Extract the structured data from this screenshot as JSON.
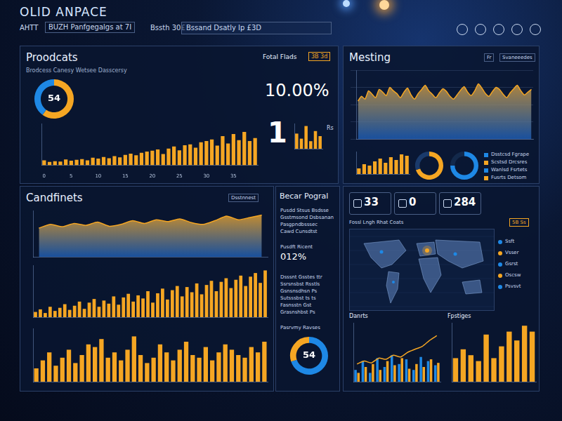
{
  "header": {
    "title": "OLID ANPACE",
    "nav": [
      "AHTT",
      "BUZH Panfgegalgs at 7I",
      "Bssth 30£"
    ],
    "search": "Bssand Dsatly Ip £3D"
  },
  "panels": [
    {
      "title": "Proodcats",
      "subtitle": "Brodcess Canesy Wetsee Dasscersy",
      "side_title": "Fotal Flads",
      "badge": "3B 3d",
      "kpi": "10.00%",
      "big": "1",
      "note": "Rs"
    },
    {
      "title": "Mesting",
      "buttons": [
        "Fr",
        "Svaneeedes"
      ],
      "legend_items": [
        "Dsstcsd Fgrape",
        "Scstsd Drcsres",
        "Wanlsd Fsrtets",
        "Fusrts Detsom"
      ]
    },
    {
      "title": "Candfinets",
      "buttons": [
        "Dsstnnest"
      ]
    },
    {
      "title": "Becar Pogral",
      "list": [
        "Pusdd Stsus Bsdsse",
        "Gsstmsond Dsbsanan",
        "Pasgpndbsssec",
        "Cawd Cunsdtst"
      ],
      "kpi_label": "Pusdft Ricent",
      "kpi": "012%",
      "list2": [
        "Dsssnt Gsstes ttr",
        "Ssrsnsbst Rsstls",
        "Gsnsnsdhsn Ps",
        "Sutsssbst ts ts",
        "Fasnsstn Gst",
        "Grasnshbst Ps"
      ],
      "caption": "Pasrvmy Ravses"
    },
    {
      "kpis": [
        "33",
        "0",
        "284"
      ],
      "map_title": "Fossl Lngh Rhat Coats",
      "badge": "5B Ss",
      "map_legend": [
        "Ssft",
        "Vsser",
        "Gsrst",
        "Oscsw",
        "Psvsvt"
      ],
      "chart_titles": [
        "Danrts",
        "Fpstiges"
      ]
    }
  ],
  "chart_data": [
    {
      "type": "doughnut",
      "values": [
        60,
        40
      ],
      "colors": [
        "#f5a623",
        "#1e88e5"
      ],
      "annotations": [
        "54"
      ]
    },
    {
      "type": "bar",
      "categories": [
        "0",
        null,
        null,
        null,
        null,
        "5",
        null,
        null,
        null,
        null,
        "10",
        null,
        null,
        null,
        null,
        "15",
        null,
        null,
        null,
        null,
        "20",
        null,
        null,
        null,
        null,
        "25",
        null,
        null,
        null,
        null,
        "30",
        null,
        null,
        null,
        null,
        "35",
        null,
        null,
        null,
        null
      ],
      "values": [
        12,
        8,
        10,
        9,
        14,
        11,
        13,
        15,
        12,
        18,
        16,
        20,
        17,
        22,
        19,
        25,
        28,
        24,
        30,
        33,
        35,
        38,
        27,
        40,
        45,
        36,
        48,
        50,
        42,
        55,
        58,
        62,
        47,
        70,
        52,
        75,
        60,
        80,
        58,
        65
      ],
      "color": "#f5a623",
      "ylim": [
        0,
        100
      ],
      "tick_labels": "x"
    },
    {
      "type": "bar",
      "values": [
        30,
        20,
        45,
        15,
        35,
        25
      ],
      "color": "#f5a623",
      "ylim": [
        0,
        50
      ],
      "tick_labels": false
    },
    {
      "type": "area",
      "values": [
        55,
        62,
        58,
        70,
        65,
        60,
        72,
        68,
        63,
        75,
        70,
        66,
        60,
        68,
        74,
        64,
        58,
        66,
        72,
        78,
        70,
        65,
        60,
        67,
        73,
        69,
        62,
        58,
        64,
        71,
        76,
        68,
        63,
        70,
        80,
        74,
        66,
        62,
        69,
        75,
        72,
        65,
        60,
        67,
        73,
        78,
        70,
        64,
        68,
        72
      ],
      "color": "#f5a623",
      "ylim": [
        0,
        100
      ],
      "yticks": [
        0,
        25,
        50,
        75,
        100
      ],
      "grid": true,
      "tick_labels": false
    },
    {
      "type": "bar",
      "values": [
        20,
        35,
        30,
        45,
        55,
        40,
        60,
        50,
        70,
        65
      ],
      "color": "#f5a623",
      "ylim": [
        0,
        80
      ],
      "tick_labels": false
    },
    {
      "type": "doughnut",
      "values": [
        70,
        30
      ],
      "colors": [
        "#f5a623",
        "#1a3a6b"
      ]
    },
    {
      "type": "doughnut",
      "values": [
        75,
        25
      ],
      "colors": [
        "#1e88e5",
        "#13294b"
      ]
    },
    {
      "type": "area",
      "values": [
        62,
        70,
        65,
        72,
        68,
        75,
        66,
        70,
        78,
        72,
        80,
        76,
        82,
        74,
        70,
        78,
        88,
        80,
        85,
        90
      ],
      "color": "#f5a623",
      "ylim": [
        0,
        100
      ],
      "tick_labels": false
    },
    {
      "type": "bar",
      "values": [
        10,
        15,
        8,
        20,
        12,
        18,
        25,
        14,
        22,
        30,
        16,
        28,
        35,
        20,
        32,
        26,
        40,
        24,
        38,
        45,
        30,
        42,
        36,
        50,
        28,
        46,
        55,
        34,
        52,
        60,
        40,
        58,
        48,
        65,
        44,
        62,
        70,
        50,
        68,
        75,
        56,
        72,
        80,
        60,
        78,
        85,
        66,
        90
      ],
      "color": "#f5a623",
      "ylim": [
        0,
        100
      ],
      "tick_labels": false
    },
    {
      "type": "bar",
      "values": [
        25,
        40,
        55,
        30,
        45,
        60,
        35,
        50,
        70,
        65,
        80,
        45,
        55,
        40,
        60,
        85,
        50,
        35,
        45,
        70,
        55,
        40,
        60,
        75,
        50,
        45,
        65,
        40,
        55,
        70,
        60,
        50,
        45,
        65,
        55,
        75
      ],
      "color": "#f5a623",
      "ylim": [
        0,
        100
      ],
      "tick_labels": false
    },
    {
      "type": "doughnut",
      "values": [
        70,
        30
      ],
      "colors": [
        "#1e88e5",
        "#f5a623"
      ],
      "annotations": [
        "54"
      ]
    },
    {
      "type": "bar",
      "series": [
        {
          "type": "line",
          "color": "#f5a623",
          "values": [
            30,
            35,
            32,
            40,
            38,
            45,
            42,
            50,
            55,
            60,
            70,
            78
          ]
        },
        {
          "type": "bar",
          "color": "#1e88e5",
          "values": [
            20,
            35,
            15,
            40,
            25,
            45,
            30,
            38,
            20,
            42,
            35,
            28
          ]
        },
        {
          "type": "bar",
          "color": "#f5a623",
          "values": [
            15,
            25,
            30,
            20,
            35,
            28,
            40,
            22,
            30,
            25,
            38,
            32
          ]
        }
      ],
      "ylim": [
        0,
        100
      ],
      "tick_labels": false
    },
    {
      "type": "bar",
      "values": [
        40,
        55,
        45,
        35,
        80,
        40,
        60,
        85,
        70,
        95,
        85
      ],
      "color": "#f5a623",
      "ylim": [
        0,
        100
      ],
      "tick_labels": false
    }
  ]
}
